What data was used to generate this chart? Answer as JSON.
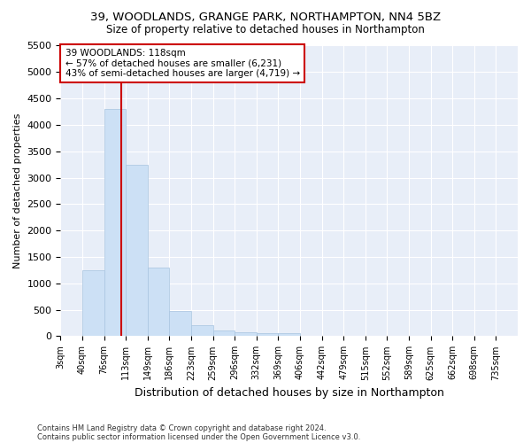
{
  "title_line1": "39, WOODLANDS, GRANGE PARK, NORTHAMPTON, NN4 5BZ",
  "title_line2": "Size of property relative to detached houses in Northampton",
  "xlabel": "Distribution of detached houses by size in Northampton",
  "ylabel": "Number of detached properties",
  "annotation_line1": "39 WOODLANDS: 118sqm",
  "annotation_line2": "← 57% of detached houses are smaller (6,231)",
  "annotation_line3": "43% of semi-detached houses are larger (4,719) →",
  "footnote1": "Contains HM Land Registry data © Crown copyright and database right 2024.",
  "footnote2": "Contains public sector information licensed under the Open Government Licence v3.0.",
  "bar_color": "#cce0f5",
  "bar_edge_color": "#a8c4e0",
  "vline_color": "#cc0000",
  "background_color": "#e8eef8",
  "annotation_box_color": "#ffffff",
  "annotation_box_edge": "#cc0000",
  "bin_labels": [
    "3sqm",
    "40sqm",
    "76sqm",
    "113sqm",
    "149sqm",
    "186sqm",
    "223sqm",
    "259sqm",
    "296sqm",
    "332sqm",
    "369sqm",
    "406sqm",
    "442sqm",
    "479sqm",
    "515sqm",
    "552sqm",
    "589sqm",
    "625sqm",
    "662sqm",
    "698sqm",
    "735sqm"
  ],
  "bar_heights": [
    0,
    1250,
    4300,
    3250,
    1300,
    480,
    210,
    100,
    75,
    55,
    50,
    0,
    0,
    0,
    0,
    0,
    0,
    0,
    0,
    0,
    0
  ],
  "vline_x_bin": 2.78,
  "ylim": [
    0,
    5500
  ],
  "yticks": [
    0,
    500,
    1000,
    1500,
    2000,
    2500,
    3000,
    3500,
    4000,
    4500,
    5000,
    5500
  ],
  "figsize": [
    6.0,
    5.0
  ],
  "dpi": 100
}
